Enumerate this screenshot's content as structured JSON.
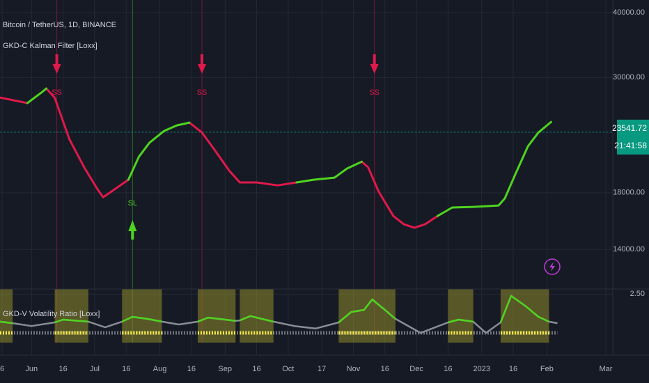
{
  "chart_data": [
    {
      "type": "line",
      "title": "Bitcoin / TetherUS, 1D, BINANCE",
      "subtitle": "GKD-C Kalman Filter [Loxx]",
      "x": [
        -15,
        -2,
        5,
        7,
        11,
        18,
        25,
        31,
        34,
        38,
        46,
        51,
        56,
        63,
        69,
        75,
        81,
        87,
        94,
        99,
        107,
        117,
        126,
        134,
        144,
        150,
        157,
        160,
        165,
        172,
        177,
        182,
        187,
        193,
        200,
        210,
        222,
        225,
        230,
        236,
        241,
        247
      ],
      "series": [
        {
          "color": "#e0194a",
          "values": [
            27450,
            26790,
            null,
            28570,
            27450,
            22810,
            20160,
            18380,
            17650,
            18100,
            19070,
            null,
            null,
            null,
            null,
            24560,
            23520,
            21780,
            19850,
            18840,
            18840,
            18600,
            18840,
            null,
            null,
            null,
            20660,
            20160,
            18100,
            16240,
            15650,
            15410,
            15650,
            16240,
            null,
            null,
            null,
            null,
            null,
            null,
            null,
            null
          ]
        },
        {
          "color": "#4fd41f",
          "values": [
            null,
            26790,
            28130,
            28570,
            null,
            null,
            null,
            null,
            null,
            null,
            19070,
            21110,
            22460,
            23670,
            24260,
            24560,
            null,
            null,
            null,
            null,
            null,
            null,
            18840,
            19070,
            19250,
            20040,
            20660,
            null,
            null,
            null,
            null,
            null,
            null,
            16240,
            16860,
            16910,
            17010,
            17550,
            19550,
            22120,
            23520,
            24640
          ]
        }
      ],
      "xlim": [
        -15,
        276
      ],
      "ylim": [
        11750,
        42300
      ],
      "log_scale": true,
      "grid": true,
      "yticks": [
        {
          "value": 40000,
          "label": "40000.00"
        },
        {
          "value": 30000,
          "label": "30000.00"
        },
        {
          "value": 18000,
          "label": "18000.00"
        },
        {
          "value": 14000,
          "label": "14000.00"
        }
      ],
      "last_price": 23541.72,
      "countdown": "21:41:58",
      "last_price_color": "#089981",
      "signals": [
        {
          "x": 12,
          "label": "SS",
          "direction": "down",
          "color": "#e0194a"
        },
        {
          "x": 48,
          "label": "SL",
          "direction": "up",
          "color": "#4fd41f"
        },
        {
          "x": 81,
          "label": "SS",
          "direction": "down",
          "color": "#e0194a"
        },
        {
          "x": 163,
          "label": "SS",
          "direction": "down",
          "color": "#e0194a"
        }
      ]
    },
    {
      "type": "line",
      "title": "GKD-V Volatility Ratio [Loxx]",
      "x": [
        -15,
        -9,
        0,
        11,
        15,
        27,
        35,
        43,
        48,
        55,
        62,
        70,
        79,
        84,
        97,
        99,
        104,
        115,
        125,
        135,
        146,
        152,
        158,
        162,
        168,
        173,
        185,
        198,
        203,
        210,
        216,
        223,
        228,
        235,
        241,
        246,
        250
      ],
      "values": [
        1.42,
        1.36,
        1.25,
        1.39,
        1.5,
        1.42,
        1.2,
        1.42,
        1.61,
        1.53,
        1.42,
        1.31,
        1.42,
        1.58,
        1.45,
        1.47,
        1.64,
        1.42,
        1.25,
        1.15,
        1.39,
        1.8,
        1.88,
        2.29,
        1.88,
        1.53,
        0.98,
        1.39,
        1.5,
        1.42,
        0.98,
        1.39,
        2.43,
        2.02,
        1.61,
        1.42,
        1.36
      ],
      "color": "#8a8d96",
      "highlight_color": "#4fd41f",
      "regions": [
        [
          -15,
          -9
        ],
        [
          11,
          27
        ],
        [
          43,
          62
        ],
        [
          79,
          97
        ],
        [
          99,
          115
        ],
        [
          146,
          173
        ],
        [
          198,
          210
        ],
        [
          223,
          246
        ]
      ],
      "region_color": "#8f8a2a",
      "marker_color": "#f5e94a",
      "xlim": [
        -15,
        276
      ],
      "ylim": [
        0.6,
        2.7
      ],
      "yticks": [
        {
          "value": 2.5,
          "label": "2.50"
        }
      ],
      "xticks": [
        {
          "value": -14,
          "label": "6"
        },
        {
          "value": 0,
          "label": "Jun"
        },
        {
          "value": 15,
          "label": "16"
        },
        {
          "value": 30,
          "label": "Jul"
        },
        {
          "value": 45,
          "label": "16"
        },
        {
          "value": 61,
          "label": "Aug"
        },
        {
          "value": 76,
          "label": "16"
        },
        {
          "value": 92,
          "label": "Sep"
        },
        {
          "value": 107,
          "label": "16"
        },
        {
          "value": 122,
          "label": "Oct"
        },
        {
          "value": 138,
          "label": "17"
        },
        {
          "value": 153,
          "label": "Nov"
        },
        {
          "value": 168,
          "label": "16"
        },
        {
          "value": 183,
          "label": "Dec"
        },
        {
          "value": 198,
          "label": "16"
        },
        {
          "value": 214,
          "label": "2023"
        },
        {
          "value": 229,
          "label": "16"
        },
        {
          "value": 245,
          "label": "Feb"
        },
        {
          "value": 273,
          "label": "Mar"
        }
      ]
    }
  ]
}
